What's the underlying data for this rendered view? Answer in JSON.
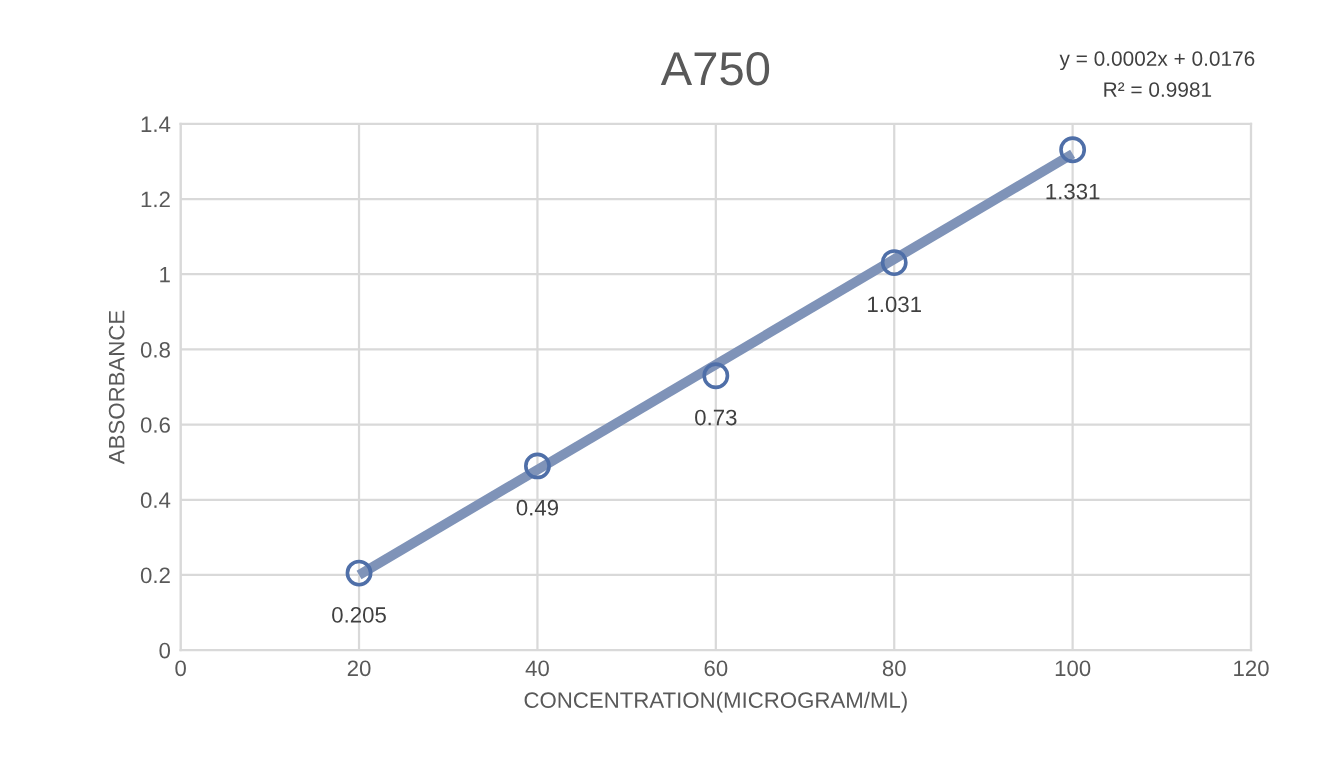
{
  "chart_data": {
    "type": "scatter",
    "title": "A750",
    "xlabel": "CONCENTRATION(MICROGRAM/ML)",
    "ylabel": "ABSORBANCE",
    "series": [
      {
        "type": "line",
        "color": "#7f93b8",
        "x": [
          20,
          100
        ],
        "values": [
          0.2,
          1.32
        ],
        "marker": "none"
      },
      {
        "color": "#4f6fa8",
        "x": [
          20,
          40,
          60,
          80,
          100
        ],
        "values": [
          0.205,
          0.49,
          0.73,
          1.031,
          1.331
        ],
        "marker": "circle",
        "value_labels": [
          "0.205",
          "0.49",
          "0.73",
          "1.031",
          "1.331"
        ]
      }
    ],
    "annotations": [
      "y = 0.0002x + 0.0176",
      "R² = 0.9981"
    ],
    "xlim": [
      0,
      120
    ],
    "xticks": [
      0,
      20,
      40,
      60,
      80,
      100,
      120
    ],
    "ylim": [
      0,
      1.4
    ],
    "yticks": [
      0,
      0.2,
      0.4,
      0.6,
      0.8,
      1,
      1.2,
      1.4
    ],
    "grid": true,
    "legend": false
  }
}
